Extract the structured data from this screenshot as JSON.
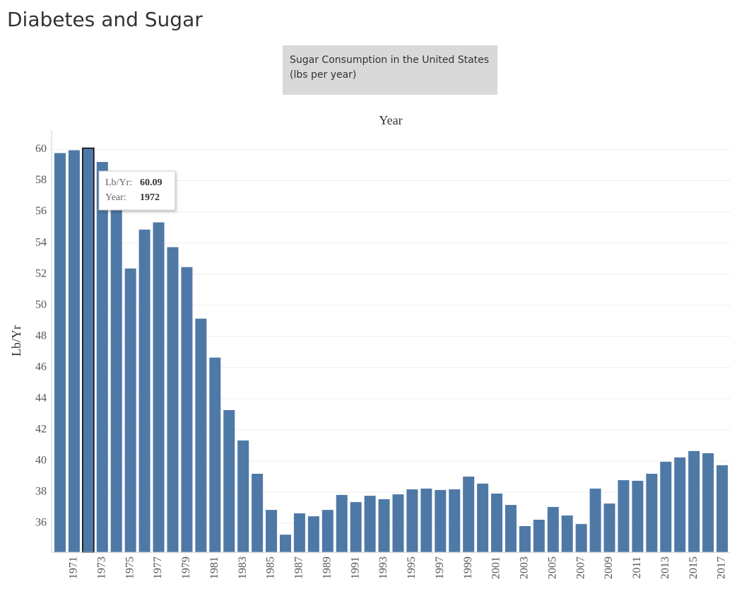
{
  "chart_data": {
    "type": "bar",
    "title": "Diabetes and Sugar",
    "subtitle_lines": [
      "Sugar Consumption in the United States",
      "(lbs per year)"
    ],
    "x_label": "Year",
    "y_label": "Lb/Yr",
    "categories": [
      null,
      "1971",
      null,
      "1973",
      null,
      "1975",
      null,
      "1977",
      null,
      "1979",
      null,
      "1981",
      null,
      "1983",
      null,
      "1985",
      null,
      "1987",
      null,
      "1989",
      null,
      "1991",
      null,
      "1993",
      null,
      "1995",
      null,
      "1997",
      null,
      "1999",
      null,
      "2001",
      null,
      "2003",
      null,
      "2005",
      null,
      "2007",
      null,
      "2009",
      null,
      "2011",
      null,
      "2013",
      null,
      "2015",
      null,
      "2017"
    ],
    "values": [
      59.77,
      59.95,
      60.09,
      59.2,
      56.4,
      52.36,
      54.86,
      55.32,
      53.73,
      52.45,
      49.14,
      46.64,
      43.27,
      41.32,
      39.18,
      36.86,
      35.27,
      36.64,
      36.45,
      36.86,
      37.82,
      37.36,
      37.77,
      37.55,
      37.86,
      38.18,
      38.23,
      38.14,
      38.18,
      39.0,
      38.55,
      37.91,
      37.18,
      35.82,
      36.23,
      37.05,
      36.5,
      35.95,
      38.23,
      37.27,
      38.77,
      38.73,
      39.18,
      39.95,
      40.23,
      40.64,
      40.5,
      39.73
    ],
    "color": "#4e79a7",
    "ylim": [
      34.14,
      61.2
    ],
    "yticks": [
      36,
      38,
      40,
      42,
      44,
      46,
      48,
      50,
      52,
      54,
      56,
      58,
      60
    ],
    "grid": true,
    "tooltip": {
      "value_label": "Lb/Yr:",
      "value": "60.09",
      "year_label": "Year:",
      "year": "1972"
    }
  }
}
